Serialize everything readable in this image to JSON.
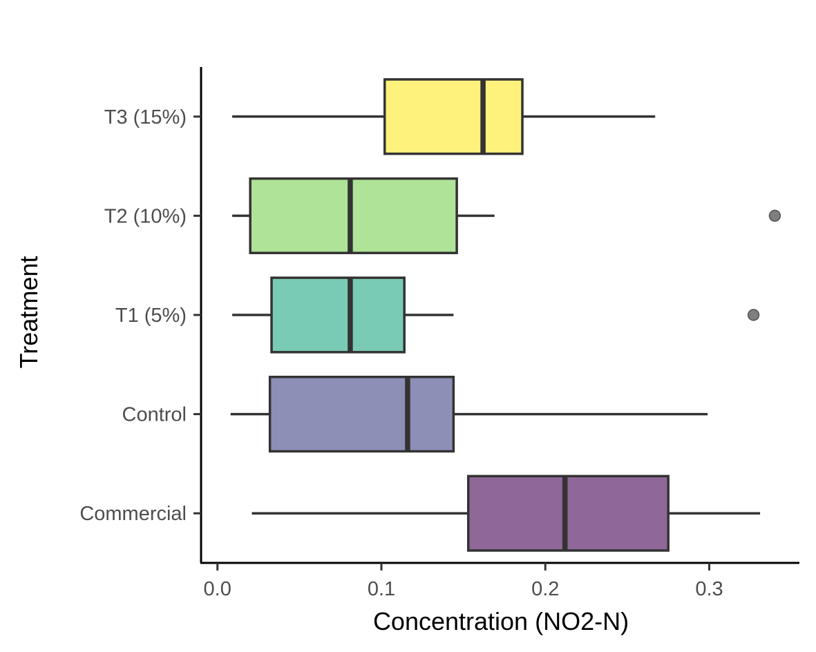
{
  "chart_data": {
    "type": "boxplot",
    "orientation": "horizontal",
    "xlabel": "Concentration (NO2-N)",
    "ylabel": "Treatment",
    "xlim": [
      -0.01,
      0.355
    ],
    "xticks": [
      0.0,
      0.1,
      0.2,
      0.3
    ],
    "xtick_labels": [
      "0.0",
      "0.1",
      "0.2",
      "0.3"
    ],
    "grid": false,
    "legend": "none",
    "categories": [
      "T3 (15%)",
      "T2 (10%)",
      "T1 (5%)",
      "Control",
      "Commercial"
    ],
    "boxes": [
      {
        "category": "T3 (15%)",
        "whisker_low": 0.009,
        "q1": 0.102,
        "median": 0.162,
        "q3": 0.186,
        "whisker_high": 0.267,
        "outliers": [],
        "color": "#FDE725"
      },
      {
        "category": "T2 (10%)",
        "whisker_low": 0.009,
        "q1": 0.02,
        "median": 0.081,
        "q3": 0.146,
        "whisker_high": 0.169,
        "outliers": [
          0.34
        ],
        "color": "#7AD151"
      },
      {
        "category": "T1 (5%)",
        "whisker_low": 0.009,
        "q1": 0.033,
        "median": 0.081,
        "q3": 0.114,
        "whisker_high": 0.144,
        "outliers": [
          0.327
        ],
        "color": "#22A884"
      },
      {
        "category": "Control",
        "whisker_low": 0.008,
        "q1": 0.032,
        "median": 0.116,
        "q3": 0.144,
        "whisker_high": 0.299,
        "outliers": [],
        "color": "#414487"
      },
      {
        "category": "Commercial",
        "whisker_low": 0.021,
        "q1": 0.153,
        "median": 0.212,
        "q3": 0.275,
        "whisker_high": 0.331,
        "outliers": [],
        "color": "#440154"
      }
    ],
    "box_fill_opacity": 0.6,
    "outlier_color": "#000000",
    "outlier_opacity": 0.5,
    "line_color": "#333333"
  }
}
